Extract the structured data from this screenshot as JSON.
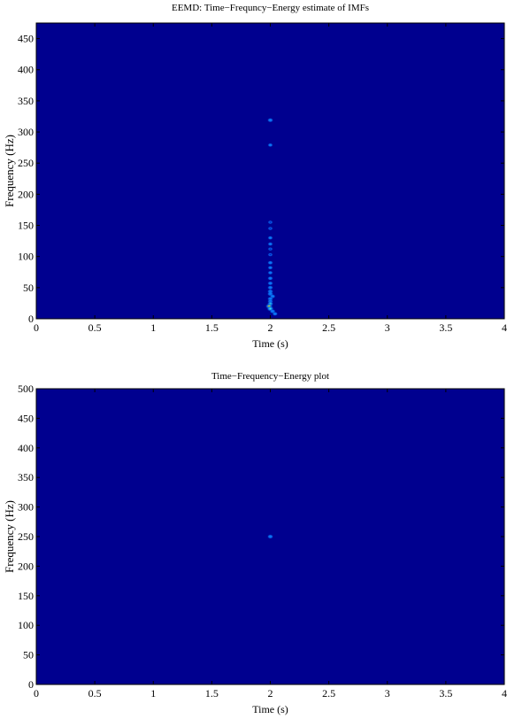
{
  "colors": {
    "background": "#00008f",
    "axis": "#000000",
    "low": "#0000b4",
    "mid": "#0a7fff",
    "high": "#3cffe0",
    "peak": "#ffef00"
  },
  "chart_data": [
    {
      "type": "heatmap",
      "title": "EEMD: Time−Frequncy−Energy estimate of IMFs",
      "xlabel": "Time (s)",
      "ylabel": "Frequency (Hz)",
      "xlim": [
        0,
        4
      ],
      "ylim": [
        0,
        475
      ],
      "xticks": [
        0,
        0.5,
        1,
        1.5,
        2,
        2.5,
        3,
        3.5,
        4
      ],
      "xtick_labels": [
        "0",
        "0.5",
        "1",
        "1.5",
        "2",
        "2.5",
        "3",
        "3.5",
        "4"
      ],
      "yticks": [
        0,
        50,
        100,
        150,
        200,
        250,
        300,
        350,
        400,
        450
      ],
      "ytick_labels": [
        "0",
        "50",
        "100",
        "150",
        "200",
        "250",
        "300",
        "350",
        "400",
        "450"
      ],
      "colormap": "jet",
      "points": [
        {
          "x": 2.0,
          "y": 319,
          "energy": 0.6
        },
        {
          "x": 2.0,
          "y": 279,
          "energy": 0.45
        },
        {
          "x": 2.0,
          "y": 155,
          "energy": 0.4
        },
        {
          "x": 2.0,
          "y": 145,
          "energy": 0.4
        },
        {
          "x": 2.0,
          "y": 130,
          "energy": 0.45
        },
        {
          "x": 2.0,
          "y": 120,
          "energy": 0.45
        },
        {
          "x": 2.0,
          "y": 112,
          "energy": 0.4
        },
        {
          "x": 2.0,
          "y": 103,
          "energy": 0.4
        },
        {
          "x": 2.0,
          "y": 90,
          "energy": 0.5
        },
        {
          "x": 2.0,
          "y": 82,
          "energy": 0.45
        },
        {
          "x": 2.0,
          "y": 74,
          "energy": 0.45
        },
        {
          "x": 2.0,
          "y": 65,
          "energy": 0.5
        },
        {
          "x": 2.0,
          "y": 57,
          "energy": 0.5
        },
        {
          "x": 2.0,
          "y": 50,
          "energy": 0.55
        },
        {
          "x": 2.0,
          "y": 44,
          "energy": 0.6
        },
        {
          "x": 2.0,
          "y": 40,
          "energy": 0.65
        },
        {
          "x": 2.02,
          "y": 36,
          "energy": 0.55
        },
        {
          "x": 2.0,
          "y": 32,
          "energy": 0.6
        },
        {
          "x": 2.0,
          "y": 28,
          "energy": 0.55
        },
        {
          "x": 2.0,
          "y": 24,
          "energy": 0.7
        },
        {
          "x": 1.99,
          "y": 20,
          "energy": 1.0
        },
        {
          "x": 2.0,
          "y": 16,
          "energy": 0.9
        },
        {
          "x": 2.02,
          "y": 12,
          "energy": 0.6
        },
        {
          "x": 2.04,
          "y": 8,
          "energy": 0.5
        }
      ]
    },
    {
      "type": "heatmap",
      "title": "Time−Frequency−Energy plot",
      "xlabel": "Time (s)",
      "ylabel": "Frequency (Hz)",
      "xlim": [
        0,
        4
      ],
      "ylim": [
        0,
        500
      ],
      "xticks": [
        0,
        0.5,
        1,
        1.5,
        2,
        2.5,
        3,
        3.5,
        4
      ],
      "xtick_labels": [
        "0",
        "0.5",
        "1",
        "1.5",
        "2",
        "2.5",
        "3",
        "3.5",
        "4"
      ],
      "yticks": [
        0,
        50,
        100,
        150,
        200,
        250,
        300,
        350,
        400,
        450,
        500
      ],
      "ytick_labels": [
        "0",
        "50",
        "100",
        "150",
        "200",
        "250",
        "300",
        "350",
        "400",
        "450",
        "500"
      ],
      "colormap": "jet",
      "points": [
        {
          "x": 2.0,
          "y": 250,
          "energy": 0.6
        }
      ]
    }
  ]
}
